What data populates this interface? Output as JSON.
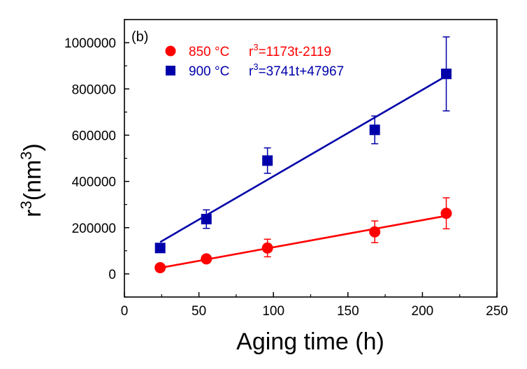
{
  "chart_data": {
    "type": "scatter",
    "panel_label": "(b)",
    "xlabel": "Aging time (h)",
    "ylabel": "r",
    "ylabel_sup": "3",
    "ylabel_unit_open": "(nm",
    "ylabel_unit_sup": "3",
    "ylabel_unit_close": ")",
    "xlim": [
      0,
      250
    ],
    "ylim": [
      -100000,
      1100000
    ],
    "x_ticks": [
      0,
      50,
      100,
      150,
      200,
      250
    ],
    "x_tick_labels": [
      "0",
      "50",
      "100",
      "150",
      "200",
      "250"
    ],
    "y_ticks": [
      0,
      200000,
      400000,
      600000,
      800000,
      1000000
    ],
    "y_tick_labels": [
      "0",
      "200000",
      "400000",
      "600000",
      "800000",
      "1000000"
    ],
    "grid": false,
    "legend_position": "top-left",
    "series": [
      {
        "name": "850 °C",
        "legend_label": "850 °C",
        "fit_text_prefix": "r",
        "fit_text_sup": "3",
        "fit_text_rest": "=1173t-2119",
        "marker": "circle",
        "color": "#ff0000",
        "x": [
          24,
          55,
          96,
          168,
          216
        ],
        "y": [
          27000,
          65000,
          112000,
          182000,
          262000
        ],
        "yerr": [
          0,
          0,
          38000,
          47000,
          67000
        ],
        "fit": {
          "slope": 1173,
          "intercept": -2119,
          "x_range": [
            24,
            216
          ]
        }
      },
      {
        "name": "900 °C",
        "legend_label": "900 °C",
        "fit_text_prefix": "r",
        "fit_text_sup": "3",
        "fit_text_rest": "=3741t+47967",
        "marker": "square",
        "color": "#0000aa",
        "x": [
          24,
          55,
          96,
          168,
          216
        ],
        "y": [
          112000,
          237000,
          490000,
          623000,
          865000
        ],
        "yerr": [
          0,
          40000,
          55000,
          60000,
          160000
        ],
        "fit": {
          "slope": 3741,
          "intercept": 47967,
          "x_range": [
            24,
            216
          ]
        }
      }
    ]
  }
}
